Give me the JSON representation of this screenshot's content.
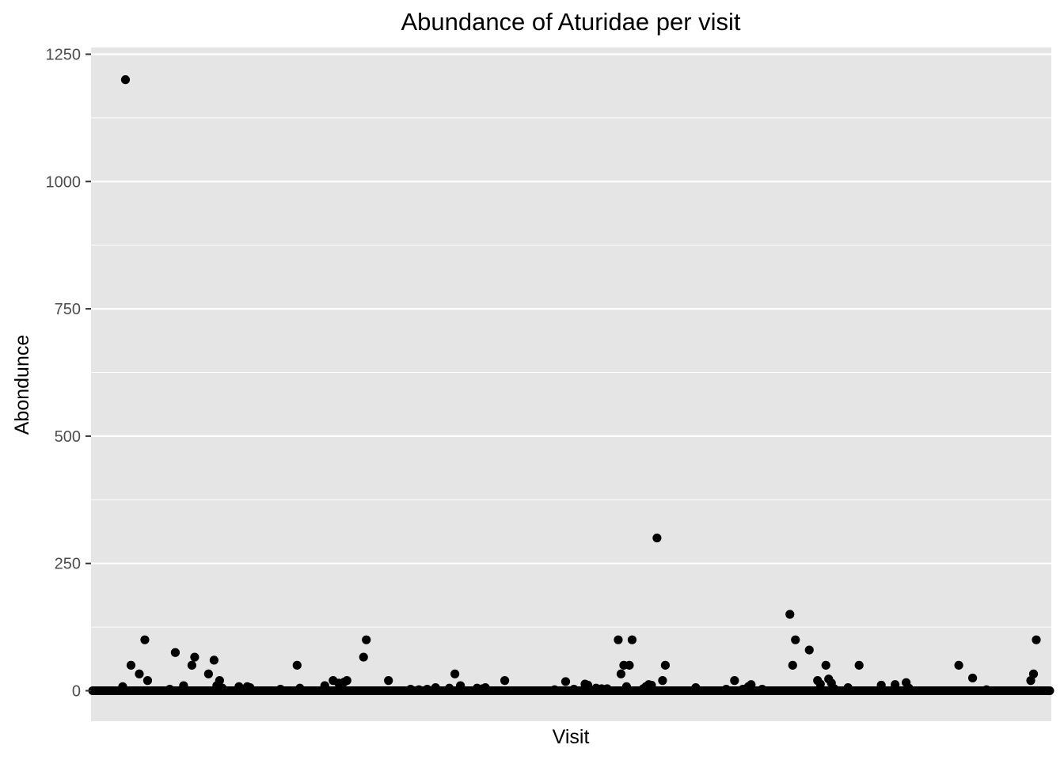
{
  "chart_data": {
    "type": "scatter",
    "title": "Abundance of Aturidae per visit",
    "xlabel": "Visit",
    "ylabel": "Abondunce",
    "ylim": [
      -70,
      1250
    ],
    "yticks": [
      0,
      250,
      500,
      750,
      1000,
      1250
    ],
    "x_tick_labels_shown": false,
    "grid": true,
    "legend": "none",
    "colors": {
      "panel": "#e5e5e5",
      "grid": "#ffffff",
      "point": "#000000",
      "tick_text": "#4d4d4d"
    },
    "baseline_zero_points": "continuous band of points at 0 across all visits",
    "series": [
      {
        "points": [
          {
            "x": 8,
            "y": 8
          },
          {
            "x": 9,
            "y": 1200
          },
          {
            "x": 11,
            "y": 50
          },
          {
            "x": 14,
            "y": 33
          },
          {
            "x": 16,
            "y": 100
          },
          {
            "x": 17,
            "y": 20
          },
          {
            "x": 25,
            "y": 3
          },
          {
            "x": 27,
            "y": 75
          },
          {
            "x": 30,
            "y": 10
          },
          {
            "x": 33,
            "y": 50
          },
          {
            "x": 34,
            "y": 66
          },
          {
            "x": 39,
            "y": 33
          },
          {
            "x": 41,
            "y": 60
          },
          {
            "x": 42,
            "y": 10
          },
          {
            "x": 43,
            "y": 20
          },
          {
            "x": 44,
            "y": 5
          },
          {
            "x": 50,
            "y": 8
          },
          {
            "x": 53,
            "y": 8
          },
          {
            "x": 54,
            "y": 6
          },
          {
            "x": 65,
            "y": 3
          },
          {
            "x": 71,
            "y": 50
          },
          {
            "x": 72,
            "y": 5
          },
          {
            "x": 81,
            "y": 10
          },
          {
            "x": 84,
            "y": 20
          },
          {
            "x": 86,
            "y": 15
          },
          {
            "x": 87,
            "y": 10
          },
          {
            "x": 88,
            "y": 17
          },
          {
            "x": 89,
            "y": 20
          },
          {
            "x": 95,
            "y": 66
          },
          {
            "x": 96,
            "y": 100
          },
          {
            "x": 104,
            "y": 20
          },
          {
            "x": 112,
            "y": 3
          },
          {
            "x": 115,
            "y": 2
          },
          {
            "x": 118,
            "y": 3
          },
          {
            "x": 121,
            "y": 6
          },
          {
            "x": 126,
            "y": 5
          },
          {
            "x": 128,
            "y": 33
          },
          {
            "x": 130,
            "y": 10
          },
          {
            "x": 136,
            "y": 5
          },
          {
            "x": 138,
            "y": 4
          },
          {
            "x": 139,
            "y": 6
          },
          {
            "x": 146,
            "y": 20
          },
          {
            "x": 164,
            "y": 2
          },
          {
            "x": 168,
            "y": 18
          },
          {
            "x": 171,
            "y": 3
          },
          {
            "x": 175,
            "y": 13
          },
          {
            "x": 176,
            "y": 11
          },
          {
            "x": 179,
            "y": 5
          },
          {
            "x": 181,
            "y": 4
          },
          {
            "x": 183,
            "y": 4
          },
          {
            "x": 187,
            "y": 100
          },
          {
            "x": 188,
            "y": 33
          },
          {
            "x": 189,
            "y": 50
          },
          {
            "x": 190,
            "y": 8
          },
          {
            "x": 191,
            "y": 50
          },
          {
            "x": 192,
            "y": 100
          },
          {
            "x": 196,
            "y": 4
          },
          {
            "x": 197,
            "y": 8
          },
          {
            "x": 198,
            "y": 12
          },
          {
            "x": 199,
            "y": 11
          },
          {
            "x": 201,
            "y": 300
          },
          {
            "x": 203,
            "y": 20
          },
          {
            "x": 204,
            "y": 50
          },
          {
            "x": 215,
            "y": 6
          },
          {
            "x": 226,
            "y": 3
          },
          {
            "x": 229,
            "y": 20
          },
          {
            "x": 232,
            "y": 3
          },
          {
            "x": 234,
            "y": 8
          },
          {
            "x": 235,
            "y": 12
          },
          {
            "x": 239,
            "y": 3
          },
          {
            "x": 249,
            "y": 150
          },
          {
            "x": 250,
            "y": 50
          },
          {
            "x": 251,
            "y": 100
          },
          {
            "x": 256,
            "y": 80
          },
          {
            "x": 259,
            "y": 20
          },
          {
            "x": 260,
            "y": 13
          },
          {
            "x": 262,
            "y": 50
          },
          {
            "x": 263,
            "y": 23
          },
          {
            "x": 264,
            "y": 15
          },
          {
            "x": 265,
            "y": 4
          },
          {
            "x": 270,
            "y": 6
          },
          {
            "x": 274,
            "y": 50
          },
          {
            "x": 282,
            "y": 11
          },
          {
            "x": 287,
            "y": 12
          },
          {
            "x": 291,
            "y": 16
          },
          {
            "x": 292,
            "y": 5
          },
          {
            "x": 310,
            "y": 50
          },
          {
            "x": 315,
            "y": 25
          },
          {
            "x": 320,
            "y": 2
          },
          {
            "x": 336,
            "y": 20
          },
          {
            "x": 337,
            "y": 33
          },
          {
            "x": 338,
            "y": 100
          }
        ]
      }
    ]
  }
}
